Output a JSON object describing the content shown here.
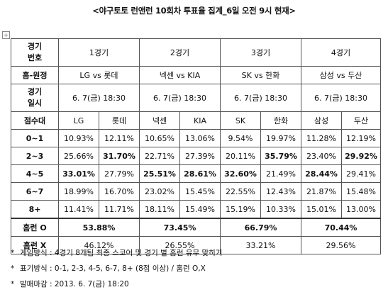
{
  "title": "<야구토토 런앤런 10회차 투표율 집계_6일 오전 9시 현재>",
  "header": {
    "game_no_label": [
      "경기",
      "번호"
    ],
    "games": [
      "1경기",
      "2경기",
      "3경기",
      "4경기"
    ],
    "matchup_label": "홈-원정",
    "matchups": [
      "LG vs 롯데",
      "넥센 vs KIA",
      "SK vs 한화",
      "삼성 vs 두산"
    ],
    "date_label": [
      "경기",
      "일시"
    ],
    "dates": [
      "6. 7(금) 18:30",
      "6. 7(금) 18:30",
      "6. 7(금) 18:30",
      "6. 7(금) 18:30"
    ]
  },
  "score_label": "점수대",
  "teams": [
    "LG",
    "롯데",
    "넥센",
    "KIA",
    "SK",
    "한화",
    "삼성",
    "두산"
  ],
  "rows": [
    {
      "range": "0~1",
      "values": [
        "10.93%",
        "12.11%",
        "10.65%",
        "13.06%",
        "9.54%",
        "19.97%",
        "11.28%",
        "12.19%"
      ],
      "bold": [
        false,
        false,
        false,
        false,
        false,
        false,
        false,
        false
      ]
    },
    {
      "range": "2~3",
      "values": [
        "25.66%",
        "31.70%",
        "22.71%",
        "27.39%",
        "20.11%",
        "35.79%",
        "23.40%",
        "29.92%"
      ],
      "bold": [
        false,
        true,
        false,
        false,
        false,
        true,
        false,
        true
      ]
    },
    {
      "range": "4~5",
      "values": [
        "33.01%",
        "27.79%",
        "25.51%",
        "28.61%",
        "32.60%",
        "21.49%",
        "28.44%",
        "29.41%"
      ],
      "bold": [
        true,
        false,
        true,
        true,
        true,
        false,
        true,
        false
      ]
    },
    {
      "range": "6~7",
      "values": [
        "18.99%",
        "16.70%",
        "23.02%",
        "15.45%",
        "22.55%",
        "12.43%",
        "21.87%",
        "15.48%"
      ],
      "bold": [
        false,
        false,
        false,
        false,
        false,
        false,
        false,
        false
      ]
    },
    {
      "range": "8+",
      "values": [
        "11.41%",
        "11.71%",
        "18.11%",
        "15.49%",
        "15.19%",
        "10.33%",
        "15.01%",
        "13.00%"
      ],
      "bold": [
        false,
        false,
        false,
        false,
        false,
        false,
        false,
        false
      ]
    }
  ],
  "homerun_o": {
    "label": "홈런 O",
    "values": [
      "53.88%",
      "73.45%",
      "66.79%",
      "70.44%"
    ]
  },
  "homerun_x": {
    "label": "홈런 X",
    "values": [
      "46.12%",
      "26.55%",
      "33.21%",
      "29.56%"
    ]
  },
  "notes": [
    "게임방식 : 4경기 8개팀 최종 스코어 및 경기 별 홈런 유무 맞히기",
    "표기방식 : 0-1, 2-3, 4-5, 6-7, 8+ (8점 이상) / 홈런 O,X",
    "발매마감 : 2013. 6. 7(금) 18:20"
  ],
  "note_marker": "*",
  "anchor_icon": "move-anchor-icon"
}
